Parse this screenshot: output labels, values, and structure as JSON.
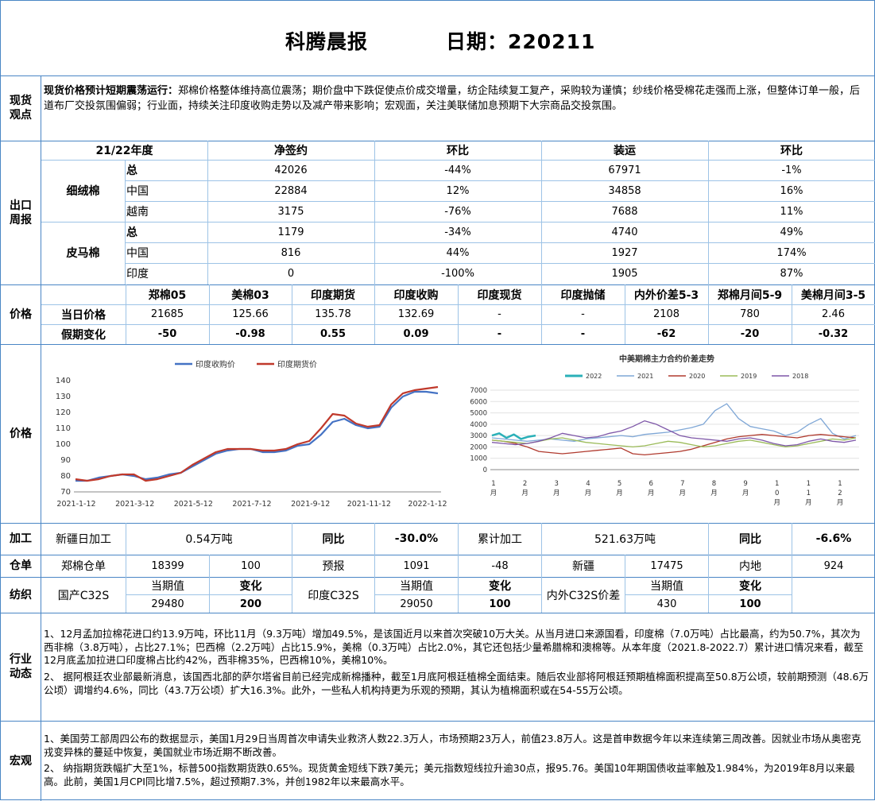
{
  "header": {
    "title": "科腾晨报",
    "date": "日期：220211"
  },
  "sections": {
    "spot": "现货\n观点",
    "export": "出口\n周报",
    "price": "价格",
    "price2": "价格",
    "processing": "加工",
    "warehouse": "仓单",
    "textile": "纺织",
    "industry": "行业\n动态",
    "macro": "宏观"
  },
  "spot_view": {
    "bold": "现货价格预计短期震荡运行：",
    "text": "郑棉价格整体维持高位震荡；期价盘中下跌促使点价成交增量，纺企陆续复工复产，采购较为谨慎；纱线价格受棉花走强而上涨，但整体订单一般，后道布厂交投氛围偏弱；行业面，持续关注印度收购走势以及减产带来影响；宏观面，关注美联储加息预期下大宗商品交投氛围。"
  },
  "export_table": {
    "headers": [
      "21/22年度",
      "净签约",
      "环比",
      "装运",
      "环比"
    ],
    "groups": [
      {
        "name": "细绒棉",
        "rows": [
          [
            "总",
            "42026",
            "-44%",
            "67971",
            "-1%"
          ],
          [
            "中国",
            "22884",
            "12%",
            "34858",
            "16%"
          ],
          [
            "越南",
            "3175",
            "-76%",
            "7688",
            "11%"
          ]
        ]
      },
      {
        "name": "皮马棉",
        "rows": [
          [
            "总",
            "1179",
            "-34%",
            "4740",
            "49%"
          ],
          [
            "中国",
            "816",
            "44%",
            "1927",
            "174%"
          ],
          [
            "印度",
            "0",
            "-100%",
            "1905",
            "87%"
          ]
        ]
      }
    ]
  },
  "price_table": {
    "headers": [
      "郑棉05",
      "美棉03",
      "印度期货",
      "印度收购",
      "印度现货",
      "印度抛储",
      "内外价差5-3",
      "郑棉月间5-9",
      "美棉月间3-5"
    ],
    "row1_label": "当日价格",
    "row1": [
      "21685",
      "125.66",
      "135.78",
      "132.69",
      "-",
      "-",
      "2108",
      "780",
      "2.46"
    ],
    "row2_label": "假期变化",
    "row2": [
      "-50",
      "-0.98",
      "0.55",
      "0.09",
      "-",
      "-",
      "-62",
      "-20",
      "-0.32"
    ]
  },
  "chart_data": [
    {
      "type": "line",
      "title": "",
      "series": [
        {
          "name": "印度收购价",
          "color": "#4472c4",
          "values": [
            77,
            77,
            79,
            80,
            81,
            80,
            78,
            79,
            81,
            82,
            86,
            90,
            94,
            96,
            97,
            97,
            95,
            95,
            96,
            99,
            100,
            106,
            114,
            116,
            112,
            110,
            111,
            123,
            130,
            133,
            133,
            132
          ]
        },
        {
          "name": "印度期货价",
          "color": "#c0392b",
          "values": [
            78,
            77,
            78,
            80,
            81,
            81,
            77,
            78,
            80,
            82,
            87,
            91,
            95,
            97,
            97,
            97,
            96,
            96,
            97,
            100,
            102,
            110,
            119,
            118,
            113,
            111,
            112,
            125,
            132,
            134,
            135,
            136
          ]
        }
      ],
      "xtick_labels": [
        "2021-1-12",
        "2021-3-12",
        "2021-5-12",
        "2021-7-12",
        "2021-9-12",
        "2021-11-12",
        "2022-1-12"
      ],
      "ylim": [
        70,
        140
      ],
      "yticks": [
        70,
        80,
        90,
        100,
        110,
        120,
        130,
        140
      ]
    },
    {
      "type": "line",
      "title": "中美期棉主力合约价差走势",
      "series": [
        {
          "name": "2022",
          "color": "#2ab0b8",
          "values": [
            3000,
            3200,
            2800,
            3100,
            2700,
            2900,
            3000
          ]
        },
        {
          "name": "2021",
          "color": "#7fa7d6",
          "values": [
            2800,
            2700,
            2600,
            2500,
            2600,
            2700,
            2600,
            2500,
            2700,
            2800,
            2900,
            3000,
            2900,
            3100,
            3200,
            3300,
            3500,
            3700,
            4000,
            5200,
            5800,
            4500,
            3800,
            3600,
            3400,
            3000,
            3300,
            4000,
            4500,
            3200,
            2700,
            3000
          ]
        },
        {
          "name": "2020",
          "color": "#b03a2e",
          "values": [
            2600,
            2500,
            2300,
            2000,
            1600,
            1500,
            1400,
            1500,
            1600,
            1700,
            1800,
            1900,
            1400,
            1300,
            1400,
            1500,
            1600,
            1800,
            2100,
            2400,
            2700,
            2900,
            3000,
            3100,
            3000,
            2900,
            2800,
            3000,
            3100,
            3000,
            2900,
            2800
          ]
        },
        {
          "name": "2019",
          "color": "#9bbb59",
          "values": [
            2600,
            2500,
            2400,
            2300,
            2500,
            2700,
            2800,
            2600,
            2400,
            2300,
            2200,
            2100,
            2000,
            2100,
            2300,
            2500,
            2400,
            2200,
            2000,
            2100,
            2300,
            2500,
            2600,
            2400,
            2200,
            2000,
            2100,
            2300,
            2500,
            2700,
            2600,
            2800
          ]
        },
        {
          "name": "2018",
          "color": "#7e57a8",
          "values": [
            2400,
            2300,
            2200,
            2300,
            2500,
            2800,
            3200,
            3000,
            2800,
            2900,
            3200,
            3400,
            3800,
            4300,
            4000,
            3500,
            3000,
            2800,
            2700,
            2600,
            2500,
            2700,
            2800,
            2600,
            2300,
            2100,
            2200,
            2500,
            2700,
            2500,
            2400,
            2600
          ]
        }
      ],
      "ylim": [
        0,
        7000
      ],
      "yticks": [
        0,
        1000,
        2000,
        3000,
        4000,
        5000,
        6000,
        7000
      ],
      "xtick_labels": [
        "1\n月",
        "2\n月",
        "3\n月",
        "4\n月",
        "5\n月",
        "6\n月",
        "7\n月",
        "8\n月",
        "9\n月",
        "1\n0\n月",
        "1\n1\n月",
        "1\n2\n月"
      ]
    }
  ],
  "processing": {
    "daily_label": "新疆日加工",
    "daily_value": "0.54万吨",
    "yoy_label": "同比",
    "yoy_value": "-30.0%",
    "cum_label": "累计加工",
    "cum_value": "521.63万吨",
    "yoy2_label": "同比",
    "yoy2_value": "-6.6%"
  },
  "warehouse": {
    "zc_label": "郑棉仓单",
    "zc_value": "18399",
    "zc_change": "100",
    "forecast_label": "预报",
    "forecast_value": "1091",
    "forecast_change": "-48",
    "xj_label": "新疆",
    "xj_value": "17475",
    "inland_label": "内地",
    "inland_value": "924"
  },
  "textile": {
    "dom_label": "国产C32S",
    "dom_cur_label": "当期值",
    "dom_cur": "29480",
    "dom_chg_label": "变化",
    "dom_chg": "200",
    "ind_label": "印度C32S",
    "ind_cur_label": "当期值",
    "ind_cur": "29050",
    "ind_chg_label": "变化",
    "ind_chg": "100",
    "spread_label": "内外C32S价差",
    "spread_cur_label": "当期值",
    "spread_cur": "430",
    "spread_chg_label": "变化",
    "spread_chg": "100"
  },
  "industry": {
    "p1": "1、12月孟加拉棉花进口约13.9万吨，环比11月（9.3万吨）增加49.5%，是该国近月以来首次突破10万大关。从当月进口来源国看，印度棉（7.0万吨）占比最高，约为50.7%，其次为西非棉（3.8万吨），占比27.1%；巴西棉（2.2万吨）占比15.9%，美棉（0.3万吨）占比2.0%，其它还包括少量希腊棉和澳棉等。从本年度（2021.8-2022.7）累计进口情况来看，截至12月底孟加拉进口印度棉占比约42%，西非棉35%，巴西棉10%，美棉10%。",
    "p2": "2、 据阿根廷农业部最新消息，该国西北部的萨尔塔省目前已经完成新棉播种，截至1月底阿根廷植棉全面结束。随后农业部将阿根廷预期植棉面积提高至50.8万公顷，较前期预测（48.6万公顷）调增约4.6%，同比（43.7万公顷）扩大16.3%。此外，一些私人机构持更为乐观的预期，其认为植棉面积或在54-55万公顷。"
  },
  "macro": {
    "p1": "1、美国劳工部周四公布的数据显示，美国1月29日当周首次申请失业救济人数22.3万人，市场预期23万人，前值23.8万人。这是首申数据今年以来连续第三周改善。因就业市场从奥密克戎变异株的蔓延中恢复，美国就业市场近期不断改善。",
    "p2": "2、  纳指期货跌幅扩大至1%，标普500指数期货跌0.65%。现货黄金短线下跌7美元；美元指数短线拉升逾30点，报95.76。美国10年期国债收益率触及1.984%，为2019年8月以来最高。此前，美国1月CPI同比增7.5%，超过预期7.3%，并创1982年以来最高水平。"
  }
}
